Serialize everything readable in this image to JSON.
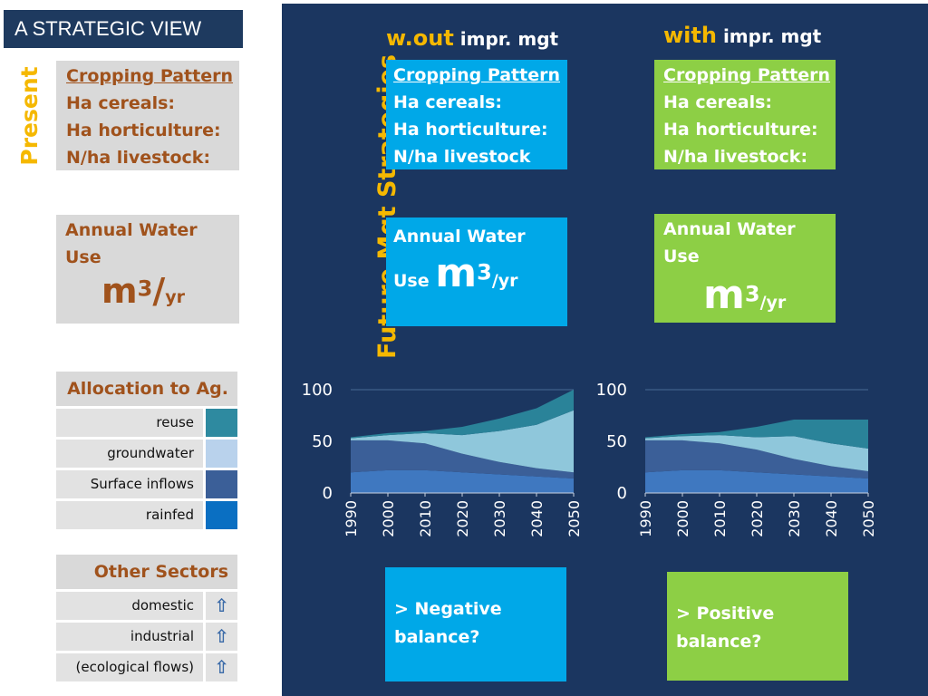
{
  "title": "A STRATEGIC VIEW",
  "present_label": "Present",
  "future_label": "Future Mgt Strategies",
  "present": {
    "crop_header": "Cropping Pattern",
    "crop_lines": [
      "Ha cereals:",
      "Ha horticulture:",
      "N/ha livestock:"
    ],
    "water_label_1": "Annual Water",
    "water_label_2": "Use",
    "unit_main": "m",
    "unit_sup": "3",
    "unit_slash": "/",
    "unit_tail": "yr"
  },
  "allocation": {
    "header": "Allocation to Ag.",
    "items": [
      {
        "label": "reuse",
        "color": "#2e8aa0"
      },
      {
        "label": "groundwater",
        "color": "#b9d2ec"
      },
      {
        "label": "Surface inflows",
        "color": "#3b5f98"
      },
      {
        "label": "rainfed",
        "color": "#0a6fc2"
      }
    ]
  },
  "other_sectors": {
    "header": "Other Sectors",
    "items": [
      {
        "label": "domestic",
        "arrow": "⇧"
      },
      {
        "label": "industrial",
        "arrow": "⇧"
      },
      {
        "label": "(ecological flows)",
        "arrow": "⇧"
      }
    ]
  },
  "without": {
    "head_highlight": "w.out",
    "head_rest": "impr. mgt",
    "crop_header": "Cropping Pattern",
    "crop_lines": [
      "Ha cereals:",
      "Ha horticulture:",
      "N/ha livestock"
    ],
    "water_label_1": "Annual Water",
    "water_label_2": "Use",
    "unit_main": "m",
    "unit_sup": "3",
    "unit_tail": "/yr",
    "balance_1": "> Negative",
    "balance_2": "balance?"
  },
  "with": {
    "head_highlight": "with",
    "head_rest": "impr. mgt",
    "crop_header": "Cropping Pattern",
    "crop_lines": [
      "Ha cereals:",
      "Ha horticulture:",
      "N/ha livestock:"
    ],
    "water_label_1": "Annual Water",
    "water_label_2": "Use",
    "unit_main": "m",
    "unit_sup": "3",
    "unit_tail": "/yr",
    "balance_1": "> Positive",
    "balance_2": "balance?"
  },
  "chart_data": [
    {
      "type": "area",
      "x": [
        1990,
        2000,
        2010,
        2020,
        2030,
        2040,
        2050
      ],
      "ylim": [
        0,
        100
      ],
      "yticks": [
        0,
        50,
        100
      ],
      "stacked": true,
      "series": [
        {
          "name": "rainfed",
          "color": "#3f78c0",
          "values": [
            20,
            22,
            22,
            20,
            18,
            16,
            14
          ]
        },
        {
          "name": "Surface inflows",
          "color": "#3b5f98",
          "values": [
            31,
            29,
            26,
            18,
            12,
            8,
            6
          ]
        },
        {
          "name": "groundwater",
          "color": "#8fc7db",
          "values": [
            2,
            5,
            10,
            18,
            30,
            42,
            60
          ]
        },
        {
          "name": "reuse",
          "color": "#2a8399",
          "values": [
            1,
            2,
            2,
            8,
            12,
            16,
            20
          ]
        }
      ]
    },
    {
      "type": "area",
      "x": [
        1990,
        2000,
        2010,
        2020,
        2030,
        2040,
        2050
      ],
      "ylim": [
        0,
        100
      ],
      "yticks": [
        0,
        50,
        100
      ],
      "stacked": true,
      "series": [
        {
          "name": "rainfed",
          "color": "#3f78c0",
          "values": [
            20,
            22,
            22,
            20,
            18,
            16,
            14
          ]
        },
        {
          "name": "Surface inflows",
          "color": "#3b5f98",
          "values": [
            31,
            29,
            26,
            22,
            15,
            10,
            7
          ]
        },
        {
          "name": "groundwater",
          "color": "#8fc7db",
          "values": [
            2,
            4,
            8,
            12,
            22,
            22,
            22
          ]
        },
        {
          "name": "reuse",
          "color": "#2a8399",
          "values": [
            1,
            2,
            3,
            10,
            16,
            23,
            28
          ]
        }
      ]
    }
  ]
}
